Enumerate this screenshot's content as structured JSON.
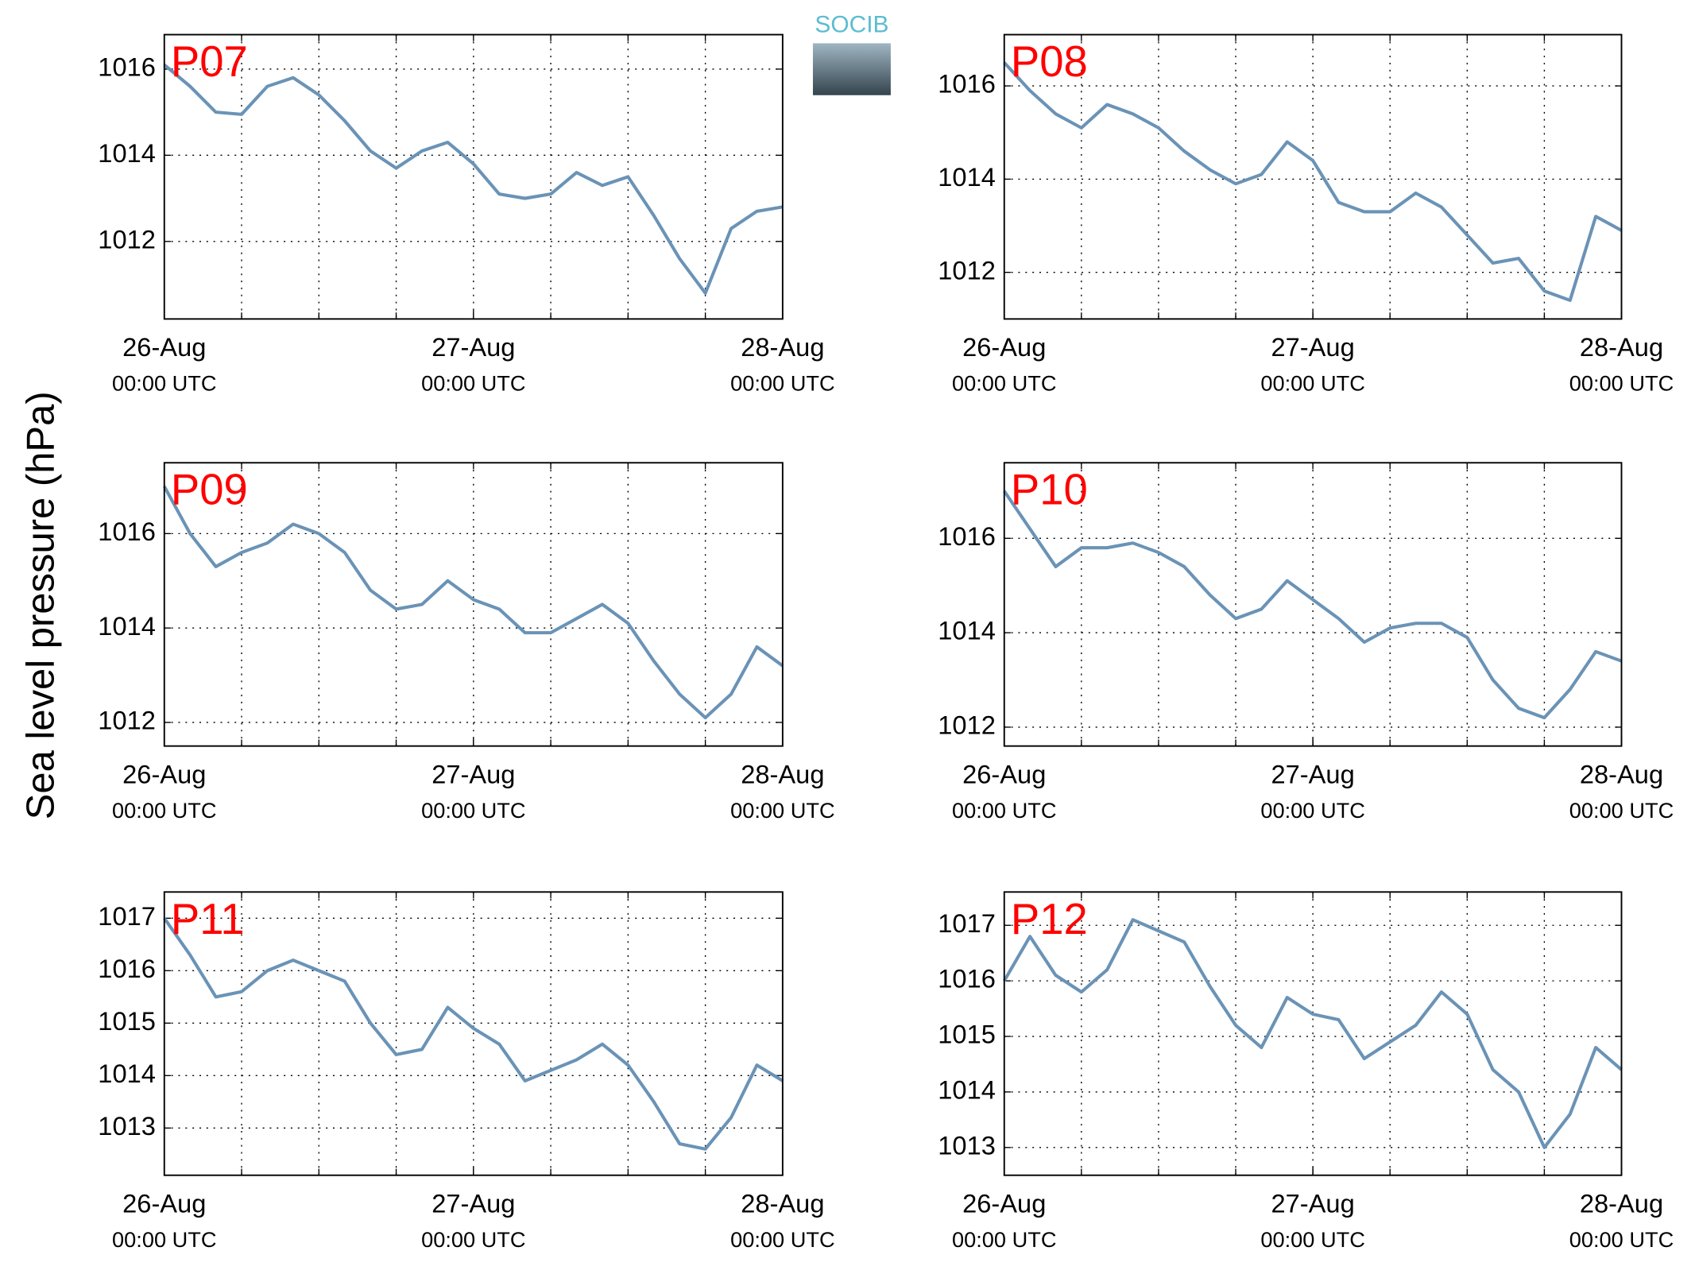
{
  "ylabel": "Sea level pressure (hPa)",
  "logo": "SOCIB",
  "chart_data": [
    {
      "type": "line",
      "title": "P07",
      "title_color": "#ff0000",
      "color": "#6a93b6",
      "grid": true,
      "x": [
        0,
        2,
        4,
        6,
        8,
        10,
        12,
        14,
        16,
        18,
        20,
        22,
        24,
        26,
        28,
        30,
        32,
        34,
        36,
        38,
        40,
        42,
        44,
        46,
        48
      ],
      "values": [
        1016.1,
        1015.6,
        1015.0,
        1014.95,
        1015.6,
        1015.8,
        1015.4,
        1014.8,
        1014.1,
        1013.7,
        1014.1,
        1014.3,
        1013.8,
        1013.1,
        1013.0,
        1013.1,
        1013.6,
        1013.3,
        1013.5,
        1012.6,
        1011.6,
        1010.8,
        1012.3,
        1012.7,
        1012.8
      ],
      "xlim": [
        0,
        48
      ],
      "xticks": [
        {
          "value": 0,
          "label": "26-Aug",
          "sublabel": "00:00 UTC"
        },
        {
          "value": 24,
          "label": "27-Aug",
          "sublabel": "00:00 UTC"
        },
        {
          "value": 48,
          "label": "28-Aug",
          "sublabel": "00:00 UTC"
        }
      ],
      "xgrid": [
        6,
        12,
        18,
        24,
        30,
        36,
        42
      ],
      "ylim": [
        1010.2,
        1016.8
      ],
      "yticks": [
        1012,
        1014,
        1016
      ]
    },
    {
      "type": "line",
      "title": "P08",
      "title_color": "#ff0000",
      "color": "#6a93b6",
      "grid": true,
      "x": [
        0,
        2,
        4,
        6,
        8,
        10,
        12,
        14,
        16,
        18,
        20,
        22,
        24,
        26,
        28,
        30,
        32,
        34,
        36,
        38,
        40,
        42,
        44,
        46,
        48
      ],
      "values": [
        1016.5,
        1015.9,
        1015.4,
        1015.1,
        1015.6,
        1015.4,
        1015.1,
        1014.6,
        1014.2,
        1013.9,
        1014.1,
        1014.8,
        1014.4,
        1013.5,
        1013.3,
        1013.3,
        1013.7,
        1013.4,
        1012.8,
        1012.2,
        1012.3,
        1011.6,
        1011.4,
        1013.2,
        1012.9
      ],
      "xlim": [
        0,
        48
      ],
      "xticks": [
        {
          "value": 0,
          "label": "26-Aug",
          "sublabel": "00:00 UTC"
        },
        {
          "value": 24,
          "label": "27-Aug",
          "sublabel": "00:00 UTC"
        },
        {
          "value": 48,
          "label": "28-Aug",
          "sublabel": "00:00 UTC"
        }
      ],
      "xgrid": [
        6,
        12,
        18,
        24,
        30,
        36,
        42
      ],
      "ylim": [
        1011.0,
        1017.1
      ],
      "yticks": [
        1012,
        1014,
        1016
      ]
    },
    {
      "type": "line",
      "title": "P09",
      "title_color": "#ff0000",
      "color": "#6a93b6",
      "grid": true,
      "x": [
        0,
        2,
        4,
        6,
        8,
        10,
        12,
        14,
        16,
        18,
        20,
        22,
        24,
        26,
        28,
        30,
        32,
        34,
        36,
        38,
        40,
        42,
        44,
        46,
        48
      ],
      "values": [
        1017.0,
        1016.0,
        1015.3,
        1015.6,
        1015.8,
        1016.2,
        1016.0,
        1015.6,
        1014.8,
        1014.4,
        1014.5,
        1015.0,
        1014.6,
        1014.4,
        1013.9,
        1013.9,
        1014.2,
        1014.5,
        1014.1,
        1013.3,
        1012.6,
        1012.1,
        1012.6,
        1013.6,
        1013.2
      ],
      "xlim": [
        0,
        48
      ],
      "xticks": [
        {
          "value": 0,
          "label": "26-Aug",
          "sublabel": "00:00 UTC"
        },
        {
          "value": 24,
          "label": "27-Aug",
          "sublabel": "00:00 UTC"
        },
        {
          "value": 48,
          "label": "28-Aug",
          "sublabel": "00:00 UTC"
        }
      ],
      "xgrid": [
        6,
        12,
        18,
        24,
        30,
        36,
        42
      ],
      "ylim": [
        1011.5,
        1017.5
      ],
      "yticks": [
        1012,
        1014,
        1016
      ]
    },
    {
      "type": "line",
      "title": "P10",
      "title_color": "#ff0000",
      "color": "#6a93b6",
      "grid": true,
      "x": [
        0,
        2,
        4,
        6,
        8,
        10,
        12,
        14,
        16,
        18,
        20,
        22,
        24,
        26,
        28,
        30,
        32,
        34,
        36,
        38,
        40,
        42,
        44,
        46,
        48
      ],
      "values": [
        1017.0,
        1016.2,
        1015.4,
        1015.8,
        1015.8,
        1015.9,
        1015.7,
        1015.4,
        1014.8,
        1014.3,
        1014.5,
        1015.1,
        1014.7,
        1014.3,
        1013.8,
        1014.1,
        1014.2,
        1014.2,
        1013.9,
        1013.0,
        1012.4,
        1012.2,
        1012.8,
        1013.6,
        1013.4
      ],
      "xlim": [
        0,
        48
      ],
      "xticks": [
        {
          "value": 0,
          "label": "26-Aug",
          "sublabel": "00:00 UTC"
        },
        {
          "value": 24,
          "label": "27-Aug",
          "sublabel": "00:00 UTC"
        },
        {
          "value": 48,
          "label": "28-Aug",
          "sublabel": "00:00 UTC"
        }
      ],
      "xgrid": [
        6,
        12,
        18,
        24,
        30,
        36,
        42
      ],
      "ylim": [
        1011.6,
        1017.6
      ],
      "yticks": [
        1012,
        1014,
        1016
      ]
    },
    {
      "type": "line",
      "title": "P11",
      "title_color": "#ff0000",
      "color": "#6a93b6",
      "grid": true,
      "x": [
        0,
        2,
        4,
        6,
        8,
        10,
        12,
        14,
        16,
        18,
        20,
        22,
        24,
        26,
        28,
        30,
        32,
        34,
        36,
        38,
        40,
        42,
        44,
        46,
        48
      ],
      "values": [
        1017.0,
        1016.3,
        1015.5,
        1015.6,
        1016.0,
        1016.2,
        1016.0,
        1015.8,
        1015.0,
        1014.4,
        1014.5,
        1015.3,
        1014.9,
        1014.6,
        1013.9,
        1014.1,
        1014.3,
        1014.6,
        1014.2,
        1013.5,
        1012.7,
        1012.6,
        1013.2,
        1014.2,
        1013.9
      ],
      "xlim": [
        0,
        48
      ],
      "xticks": [
        {
          "value": 0,
          "label": "26-Aug",
          "sublabel": "00:00 UTC"
        },
        {
          "value": 24,
          "label": "27-Aug",
          "sublabel": "00:00 UTC"
        },
        {
          "value": 48,
          "label": "28-Aug",
          "sublabel": "00:00 UTC"
        }
      ],
      "xgrid": [
        6,
        12,
        18,
        24,
        30,
        36,
        42
      ],
      "ylim": [
        1012.1,
        1017.5
      ],
      "yticks": [
        1013,
        1014,
        1015,
        1016,
        1017
      ]
    },
    {
      "type": "line",
      "title": "P12",
      "title_color": "#ff0000",
      "color": "#6a93b6",
      "grid": true,
      "x": [
        0,
        2,
        4,
        6,
        8,
        10,
        12,
        14,
        16,
        18,
        20,
        22,
        24,
        26,
        28,
        30,
        32,
        34,
        36,
        38,
        40,
        42,
        44,
        46,
        48
      ],
      "values": [
        1016.0,
        1016.8,
        1016.1,
        1015.8,
        1016.2,
        1017.1,
        1016.9,
        1016.7,
        1015.9,
        1015.2,
        1014.8,
        1015.7,
        1015.4,
        1015.3,
        1014.6,
        1014.9,
        1015.2,
        1015.8,
        1015.4,
        1014.4,
        1014.0,
        1013.0,
        1013.6,
        1014.8,
        1014.4
      ],
      "xlim": [
        0,
        48
      ],
      "xticks": [
        {
          "value": 0,
          "label": "26-Aug",
          "sublabel": "00:00 UTC"
        },
        {
          "value": 24,
          "label": "27-Aug",
          "sublabel": "00:00 UTC"
        },
        {
          "value": 48,
          "label": "28-Aug",
          "sublabel": "00:00 UTC"
        }
      ],
      "xgrid": [
        6,
        12,
        18,
        24,
        30,
        36,
        42
      ],
      "ylim": [
        1012.5,
        1017.6
      ],
      "yticks": [
        1013,
        1014,
        1015,
        1016,
        1017
      ]
    }
  ]
}
